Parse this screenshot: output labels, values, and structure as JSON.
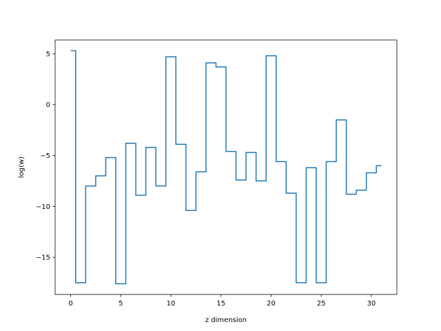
{
  "chart_data": {
    "type": "line",
    "drawstyle": "steps-mid",
    "title": "",
    "xlabel": "z dimension",
    "ylabel": "log(w)",
    "xlim": [
      -1.55,
      32.55
    ],
    "ylim": [
      -18.65,
      6.35
    ],
    "grid": false,
    "line_color": "#1f77b4",
    "x_ticks": [
      0,
      5,
      10,
      15,
      20,
      25,
      30
    ],
    "x_tick_labels": [
      "0",
      "5",
      "10",
      "15",
      "20",
      "25",
      "30"
    ],
    "y_ticks": [
      5,
      0,
      -5,
      -10,
      -15
    ],
    "y_tick_labels": [
      "5",
      "0",
      "−5",
      "−10",
      "−15"
    ],
    "series": [
      {
        "x": [
          0,
          1,
          2,
          3,
          4,
          5,
          6,
          7,
          8,
          9,
          10,
          11,
          12,
          13,
          14,
          15,
          16,
          17,
          18,
          19,
          20,
          21,
          22,
          23,
          24,
          25,
          26,
          27,
          28,
          29,
          30,
          31
        ],
        "values": [
          5.3,
          -17.5,
          -8.0,
          -7.0,
          -5.2,
          -17.6,
          -3.8,
          -8.9,
          -4.2,
          -8.0,
          4.7,
          -3.9,
          -10.4,
          -6.6,
          4.1,
          3.7,
          -4.6,
          -7.4,
          -4.7,
          -7.5,
          4.8,
          -5.6,
          -8.7,
          -17.5,
          -6.2,
          -17.5,
          -5.6,
          -1.5,
          -8.8,
          -8.4,
          -6.7,
          -6.0
        ]
      }
    ]
  }
}
